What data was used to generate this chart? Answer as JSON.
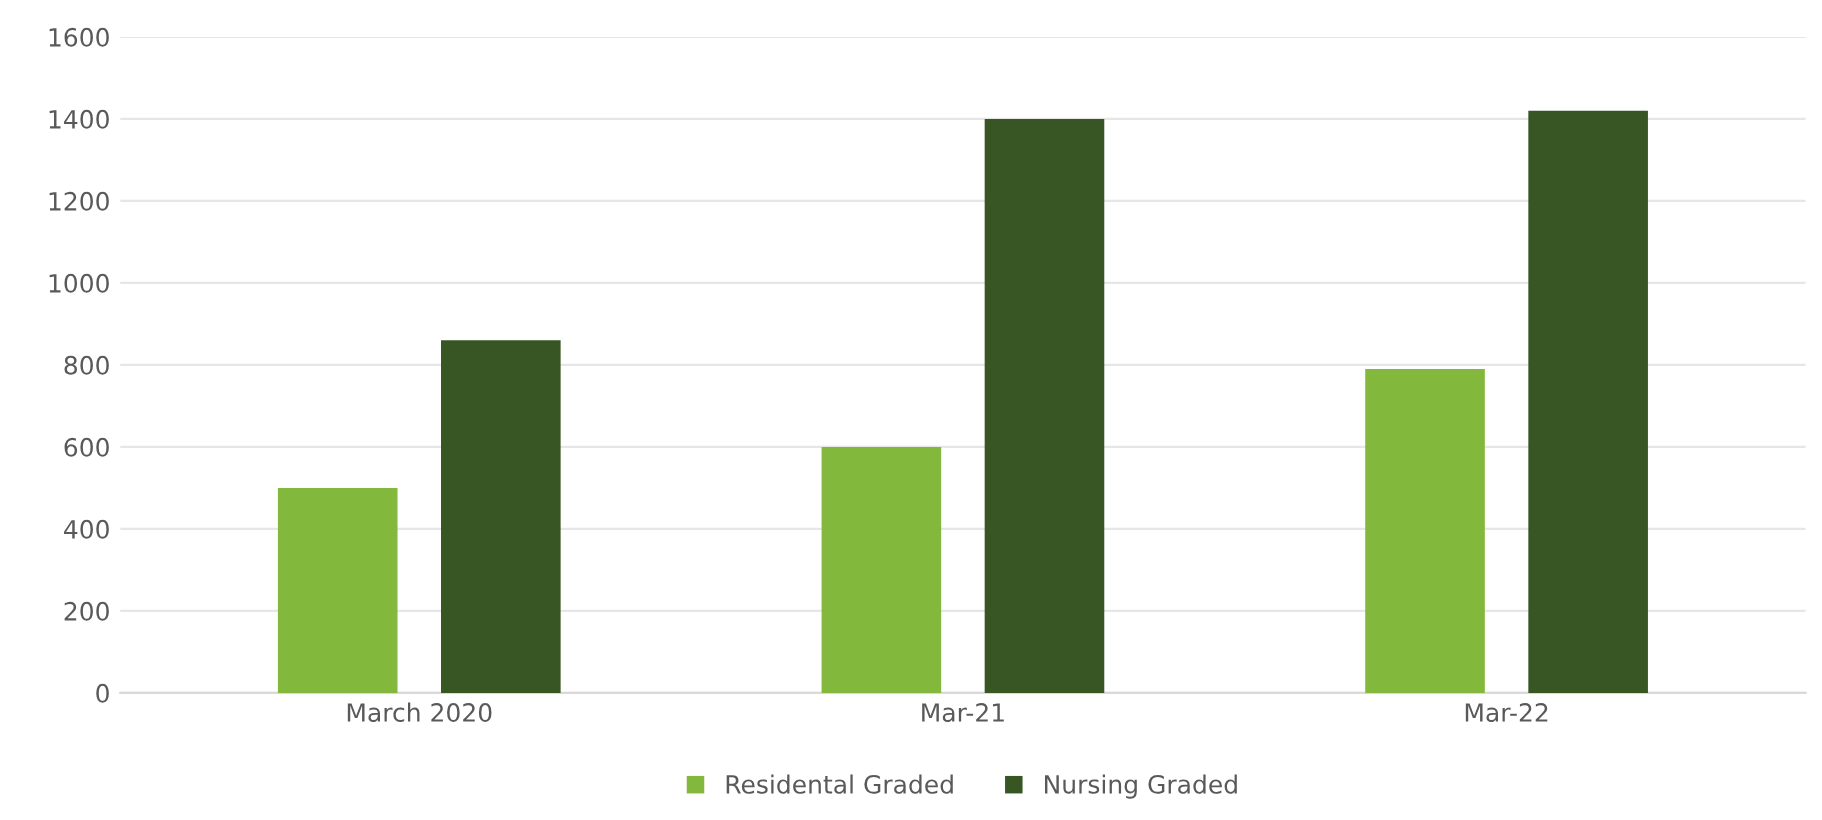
{
  "chart_data": {
    "type": "bar",
    "categories": [
      "March 2020",
      "Mar-21",
      "Mar-22"
    ],
    "series": [
      {
        "name": "Residental Graded",
        "color": "#82b93c",
        "values": [
          500,
          600,
          790
        ]
      },
      {
        "name": "Nursing Graded",
        "color": "#375623",
        "values": [
          860,
          1400,
          1420
        ]
      }
    ],
    "ylim": [
      0,
      1600
    ],
    "yticks": [
      0,
      200,
      400,
      600,
      800,
      1000,
      1200,
      1400,
      1600
    ],
    "grid": "y",
    "legend": "bottom"
  }
}
